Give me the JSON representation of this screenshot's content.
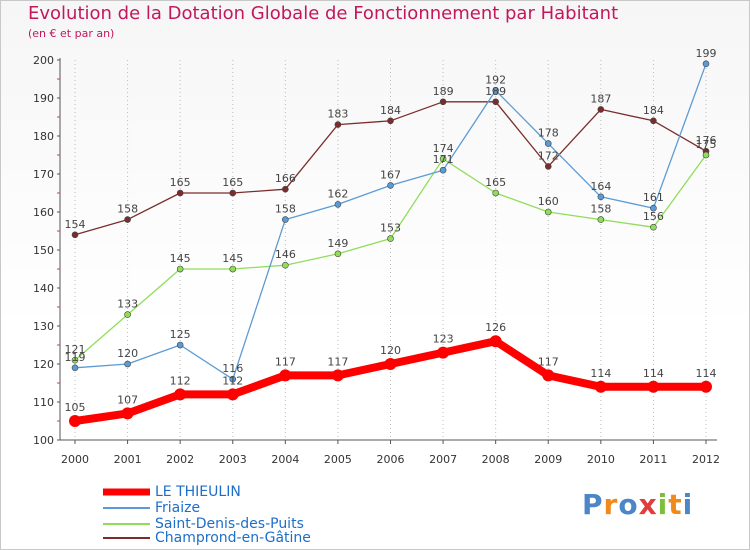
{
  "chart_data": {
    "type": "line",
    "title": "Evolution de la Dotation Globale de Fonctionnement par Habitant",
    "subtitle": "(en € et par an)",
    "xlabel": "",
    "ylabel": "",
    "ylim": [
      100,
      200
    ],
    "yticks": [
      "100",
      "110",
      "120",
      "130",
      "140",
      "150",
      "160",
      "170",
      "180",
      "190",
      "200"
    ],
    "categories": [
      "2000",
      "2001",
      "2002",
      "2003",
      "2004",
      "2005",
      "2006",
      "2007",
      "2008",
      "2009",
      "2010",
      "2011",
      "2012"
    ],
    "grid": "vertical dotted",
    "legend_position": "bottom-left",
    "series": [
      {
        "name": "LE THIEULIN",
        "color": "#ff0000",
        "values": [
          105,
          107,
          112,
          112,
          117,
          117,
          120,
          123,
          126,
          117,
          114,
          114,
          114
        ],
        "labels": [
          "105",
          "107",
          "112",
          "112",
          "117",
          "117",
          "120",
          "123",
          "126",
          "117",
          "114",
          "114",
          "114"
        ]
      },
      {
        "name": "Friaize",
        "color": "#5b9bd5",
        "values": [
          119,
          120,
          125,
          116,
          158,
          162,
          167,
          171,
          192,
          178,
          164,
          161,
          199
        ],
        "labels": [
          "119",
          "120",
          "125",
          "116",
          "158",
          "162",
          "167",
          "171",
          "192",
          "178",
          "164",
          "161",
          "199"
        ]
      },
      {
        "name": "Saint-Denis-des-Puits",
        "color": "#90dd5a",
        "values": [
          121,
          133,
          145,
          145,
          146,
          149,
          153,
          174,
          165,
          160,
          158,
          156,
          175
        ],
        "labels": [
          "121",
          "133",
          "145",
          "145",
          "146",
          "149",
          "153",
          "174",
          "165",
          "160",
          "158",
          "156",
          "175"
        ]
      },
      {
        "name": "Champrond-en-Gâtine",
        "color": "#7b2d2d",
        "values": [
          154,
          158,
          165,
          165,
          166,
          183,
          184,
          189,
          189,
          172,
          187,
          184,
          176
        ],
        "labels": [
          "154",
          "158",
          "165",
          "165",
          "166",
          "183",
          "184",
          "189",
          "189",
          "172",
          "187",
          "184",
          "176"
        ]
      }
    ]
  },
  "logo": {
    "text": "Proxiti",
    "letters": [
      "P",
      "r",
      "o",
      "x",
      "i",
      "t",
      "i"
    ],
    "colors": [
      "#4a86c8",
      "#f08a1c",
      "#4a86c8",
      "#e23c3c",
      "#7cbf3a",
      "#f08a1c",
      "#4a86c8"
    ]
  }
}
